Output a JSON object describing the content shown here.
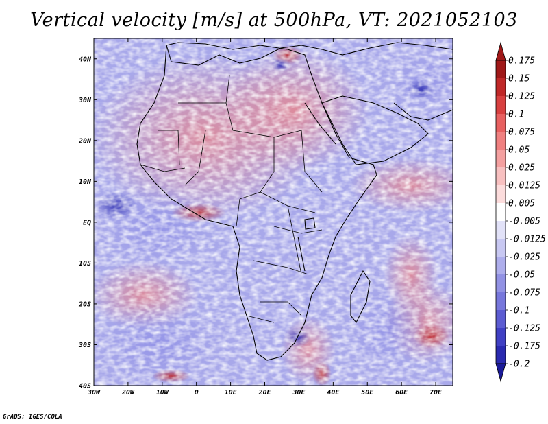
{
  "title": "Vertical velocity [m/s] at 500hPa, VT: 2021052103",
  "credit": "GrADS: IGES/COLA",
  "map": {
    "lon_labels": [
      "30W",
      "20W",
      "10W",
      "0",
      "10E",
      "20E",
      "30E",
      "40E",
      "50E",
      "60E",
      "70E"
    ],
    "lat_labels": [
      "40N",
      "30N",
      "20N",
      "10N",
      "EQ",
      "10S",
      "20S",
      "30S",
      "40S"
    ],
    "lon_range": [
      -30,
      75
    ],
    "lat_range": [
      -40,
      45
    ]
  },
  "colorbar": {
    "labels": [
      "0.175",
      "0.15",
      "0.125",
      "0.1",
      "0.075",
      "0.05",
      "0.025",
      "0.0125",
      "0.005",
      "-0.005",
      "-0.0125",
      "-0.025",
      "-0.05",
      "-0.075",
      "-0.1",
      "-0.125",
      "-0.175",
      "-0.2"
    ],
    "colors": [
      "#a01818",
      "#c02828",
      "#d84040",
      "#e86060",
      "#f08080",
      "#f4a0a0",
      "#f8c0c0",
      "#fcdcdc",
      "#ffffff",
      "#e2e2f8",
      "#c8c8f2",
      "#aeaeec",
      "#9292e4",
      "#7777dc",
      "#5c5cd2",
      "#4040c4",
      "#2a2ab0",
      "#1a1a98"
    ]
  },
  "colors": {
    "positive": "#d03030",
    "negative": "#3a3ad0",
    "coast": "#000000"
  }
}
